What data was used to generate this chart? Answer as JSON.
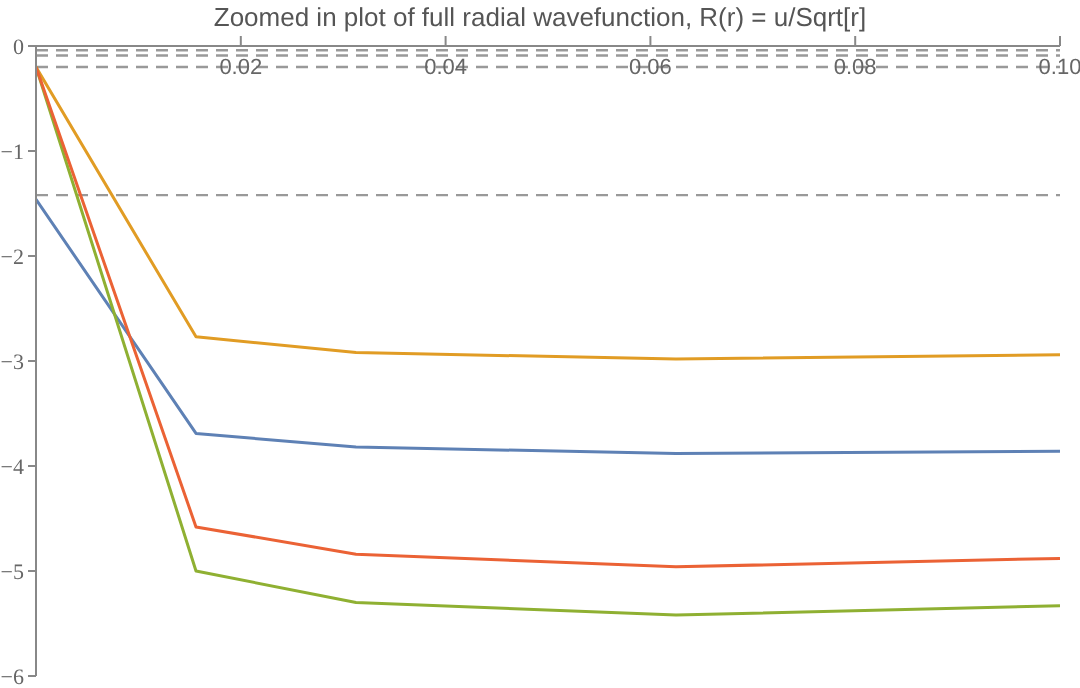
{
  "chart_data": {
    "type": "line",
    "title": "Zoomed in plot of full radial wavefunction, R(r) = u/Sqrt[r]",
    "x": [
      0,
      0.015625,
      0.03125,
      0.0625,
      0.1
    ],
    "series": [
      {
        "color": "#5e81b5",
        "values": [
          -1.46,
          -3.69,
          -3.82,
          -3.88,
          -3.86
        ]
      },
      {
        "color": "#e19c24",
        "values": [
          -0.2,
          -2.77,
          -2.92,
          -2.98,
          -2.94
        ]
      },
      {
        "color": "#8fb032",
        "values": [
          -0.2,
          -5.0,
          -5.3,
          -5.42,
          -5.33
        ]
      },
      {
        "color": "#eb6235",
        "values": [
          -0.2,
          -4.58,
          -4.84,
          -4.96,
          -4.88
        ]
      }
    ],
    "xlim": [
      0,
      0.1
    ],
    "xticks": [
      0.02,
      0.04,
      0.06,
      0.08,
      {
        "value": 0.1,
        "label": "0.10"
      }
    ],
    "ylim": [
      -6,
      0
    ],
    "yticks": [
      0,
      -1,
      -2,
      -3,
      -4,
      -5,
      -6
    ],
    "ref_lines": [
      {
        "axis": "y",
        "value": -0.04,
        "color": "#999999",
        "line_style": "dashed"
      },
      {
        "axis": "y",
        "value": -0.09,
        "color": "#999999",
        "line_style": "dashed"
      },
      {
        "axis": "y",
        "value": -0.2,
        "color": "#999999",
        "line_style": "dashed"
      },
      {
        "axis": "y",
        "value": -1.42,
        "color": "#999999",
        "line_style": "dashed"
      }
    ],
    "grid": false,
    "legend": false,
    "marker": "none",
    "line_style": "solid"
  }
}
